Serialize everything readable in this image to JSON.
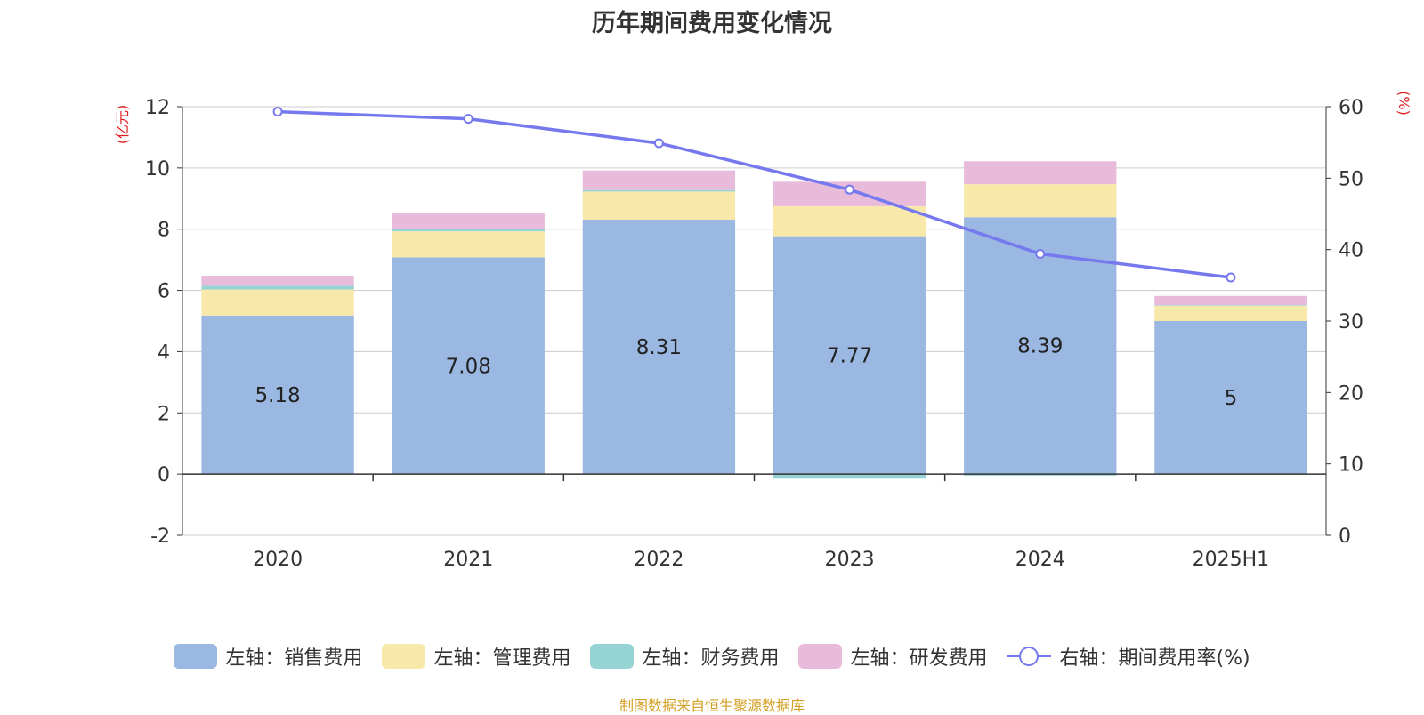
{
  "chart_data": {
    "type": "bar",
    "title": "历年期间费用变化情况",
    "source": "制图数据来自恒生聚源数据库",
    "categories": [
      "2020",
      "2021",
      "2022",
      "2023",
      "2024",
      "2025H1"
    ],
    "left_axis": {
      "label": "(亿元)",
      "ylim": [
        -2,
        12
      ],
      "ticks": [
        -2,
        0,
        2,
        4,
        6,
        8,
        10,
        12
      ]
    },
    "right_axis": {
      "label": "(%)",
      "ylim": [
        0,
        60
      ],
      "ticks": [
        0,
        10,
        20,
        30,
        40,
        50,
        60
      ]
    },
    "grid": true,
    "legend_position": "bottom",
    "series": [
      {
        "name": "左轴：销售费用",
        "type": "bar",
        "axis": "left",
        "color": "#9bb8e2",
        "values": [
          5.18,
          7.08,
          8.31,
          7.77,
          8.39,
          5
        ],
        "show_labels": true
      },
      {
        "name": "左轴：管理费用",
        "type": "bar",
        "axis": "left",
        "color": "#f8e8aa",
        "values": [
          0.85,
          0.85,
          0.92,
          0.98,
          1.08,
          0.5
        ]
      },
      {
        "name": "左轴：财务费用",
        "type": "bar",
        "axis": "left",
        "color": "#96d3d5",
        "values": [
          0.12,
          0.08,
          0.05,
          -0.15,
          -0.05,
          0.02
        ]
      },
      {
        "name": "左轴：研发费用",
        "type": "bar",
        "axis": "left",
        "color": "#e8bbda",
        "values": [
          0.33,
          0.52,
          0.64,
          0.8,
          0.75,
          0.3
        ]
      },
      {
        "name": "右轴：期间费用率(%)",
        "type": "line",
        "axis": "right",
        "color": "#7679ee",
        "values": [
          59.3,
          58.3,
          54.9,
          48.4,
          39.4,
          36.1
        ]
      }
    ]
  }
}
